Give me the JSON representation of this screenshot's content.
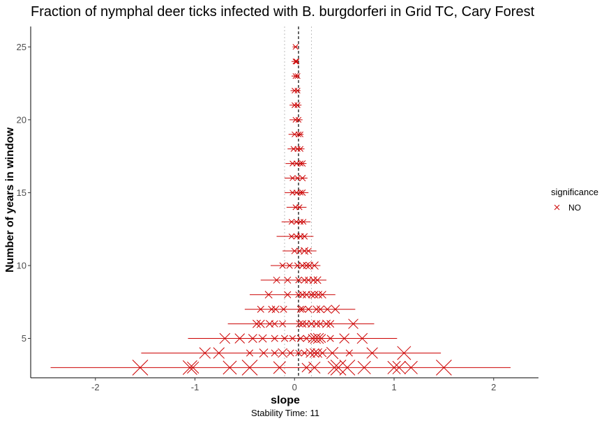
{
  "chart_data": {
    "type": "scatter",
    "title": "Fraction of nymphal deer ticks infected with B. burgdorferi in Grid TC, Cary Forest",
    "xlabel": "slope",
    "ylabel": "Number of years in window",
    "caption": "Stability Time: 11",
    "xlim": [
      -2.65,
      2.45
    ],
    "ylim": [
      2.3,
      26.4
    ],
    "x_ticks": [
      -2,
      -1,
      0,
      1,
      2
    ],
    "y_ticks": [
      5,
      10,
      15,
      20,
      25
    ],
    "x_tick_labels": [
      "-2",
      "-1",
      "0",
      "1",
      "2"
    ],
    "y_tick_labels": [
      "5",
      "10",
      "15",
      "20",
      "25"
    ],
    "reference_lines": {
      "overall_slope": 0.04,
      "lower": -0.1,
      "upper": 0.17
    },
    "legend": {
      "title": "significance",
      "entries": [
        "NO"
      ],
      "position": "right"
    },
    "colors": {
      "marker": "#cc0000",
      "range": "#cc0000",
      "reference": "#000000",
      "bounds": "#bdbdbd"
    },
    "rows": [
      {
        "n": 3,
        "min": -2.45,
        "max": 2.17,
        "points": [
          {
            "x": -1.55,
            "s": 1.0
          },
          {
            "x": -1.05,
            "s": 0.9
          },
          {
            "x": -1.02,
            "s": 0.7
          },
          {
            "x": -0.65,
            "s": 0.85
          },
          {
            "x": -0.45,
            "s": 1.0
          },
          {
            "x": -0.15,
            "s": 0.75
          },
          {
            "x": 0.12,
            "s": 0.5
          },
          {
            "x": 0.2,
            "s": 0.7
          },
          {
            "x": 0.4,
            "s": 0.8
          },
          {
            "x": 0.44,
            "s": 1.0
          },
          {
            "x": 0.53,
            "s": 1.0
          },
          {
            "x": 0.7,
            "s": 0.8
          },
          {
            "x": 1.0,
            "s": 0.8
          },
          {
            "x": 1.05,
            "s": 0.8
          },
          {
            "x": 1.17,
            "s": 0.8
          },
          {
            "x": 1.5,
            "s": 1.0
          }
        ]
      },
      {
        "n": 4,
        "min": -1.54,
        "max": 1.47,
        "points": [
          {
            "x": -0.9,
            "s": 0.65
          },
          {
            "x": -0.76,
            "s": 0.65
          },
          {
            "x": -0.45,
            "s": 0.3
          },
          {
            "x": -0.31,
            "s": 0.45
          },
          {
            "x": -0.2,
            "s": 0.3
          },
          {
            "x": -0.12,
            "s": 0.5
          },
          {
            "x": -0.04,
            "s": 0.3
          },
          {
            "x": 0.04,
            "s": 0.25
          },
          {
            "x": 0.1,
            "s": 0.3
          },
          {
            "x": 0.16,
            "s": 0.5
          },
          {
            "x": 0.2,
            "s": 0.5
          },
          {
            "x": 0.23,
            "s": 0.5
          },
          {
            "x": 0.28,
            "s": 0.4
          },
          {
            "x": 0.38,
            "s": 0.7
          },
          {
            "x": 0.55,
            "s": 0.3
          },
          {
            "x": 0.78,
            "s": 0.65
          },
          {
            "x": 1.1,
            "s": 0.85
          }
        ]
      },
      {
        "n": 5,
        "min": -1.07,
        "max": 1.03,
        "points": [
          {
            "x": -0.7,
            "s": 0.6
          },
          {
            "x": -0.55,
            "s": 0.55
          },
          {
            "x": -0.42,
            "s": 0.45
          },
          {
            "x": -0.32,
            "s": 0.4
          },
          {
            "x": -0.2,
            "s": 0.3
          },
          {
            "x": -0.1,
            "s": 0.3
          },
          {
            "x": -0.02,
            "s": 0.25
          },
          {
            "x": 0.06,
            "s": 0.3
          },
          {
            "x": 0.12,
            "s": 0.3
          },
          {
            "x": 0.18,
            "s": 0.45
          },
          {
            "x": 0.21,
            "s": 0.6
          },
          {
            "x": 0.24,
            "s": 0.6
          },
          {
            "x": 0.27,
            "s": 0.45
          },
          {
            "x": 0.36,
            "s": 0.3
          },
          {
            "x": 0.5,
            "s": 0.55
          },
          {
            "x": 0.68,
            "s": 0.6
          }
        ]
      },
      {
        "n": 6,
        "min": -0.67,
        "max": 0.8,
        "points": [
          {
            "x": -0.38,
            "s": 0.4
          },
          {
            "x": -0.34,
            "s": 0.4
          },
          {
            "x": -0.25,
            "s": 0.35
          },
          {
            "x": -0.2,
            "s": 0.3
          },
          {
            "x": -0.12,
            "s": 0.3
          },
          {
            "x": 0.05,
            "s": 0.3
          },
          {
            "x": 0.08,
            "s": 0.35
          },
          {
            "x": 0.12,
            "s": 0.3
          },
          {
            "x": 0.17,
            "s": 0.35
          },
          {
            "x": 0.22,
            "s": 0.35
          },
          {
            "x": 0.26,
            "s": 0.3
          },
          {
            "x": 0.32,
            "s": 0.4
          },
          {
            "x": 0.36,
            "s": 0.35
          },
          {
            "x": 0.59,
            "s": 0.55
          }
        ]
      },
      {
        "n": 7,
        "min": -0.5,
        "max": 0.61,
        "points": [
          {
            "x": -0.34,
            "s": 0.3
          },
          {
            "x": -0.23,
            "s": 0.3
          },
          {
            "x": -0.19,
            "s": 0.35
          },
          {
            "x": -0.11,
            "s": 0.3
          },
          {
            "x": 0.06,
            "s": 0.3
          },
          {
            "x": 0.08,
            "s": 0.3
          },
          {
            "x": 0.14,
            "s": 0.3
          },
          {
            "x": 0.22,
            "s": 0.35
          },
          {
            "x": 0.26,
            "s": 0.35
          },
          {
            "x": 0.33,
            "s": 0.35
          },
          {
            "x": 0.41,
            "s": 0.45
          }
        ]
      },
      {
        "n": 8,
        "min": -0.45,
        "max": 0.41,
        "points": [
          {
            "x": -0.26,
            "s": 0.35
          },
          {
            "x": -0.07,
            "s": 0.3
          },
          {
            "x": 0.04,
            "s": 0.25
          },
          {
            "x": 0.08,
            "s": 0.3
          },
          {
            "x": 0.12,
            "s": 0.35
          },
          {
            "x": 0.17,
            "s": 0.3
          },
          {
            "x": 0.2,
            "s": 0.35
          },
          {
            "x": 0.24,
            "s": 0.35
          },
          {
            "x": 0.28,
            "s": 0.35
          }
        ]
      },
      {
        "n": 9,
        "min": -0.34,
        "max": 0.32,
        "points": [
          {
            "x": -0.18,
            "s": 0.3
          },
          {
            "x": -0.07,
            "s": 0.3
          },
          {
            "x": 0.04,
            "s": 0.25
          },
          {
            "x": 0.1,
            "s": 0.3
          },
          {
            "x": 0.14,
            "s": 0.3
          },
          {
            "x": 0.19,
            "s": 0.35
          },
          {
            "x": 0.23,
            "s": 0.35
          }
        ]
      },
      {
        "n": 10,
        "min": -0.24,
        "max": 0.26,
        "points": [
          {
            "x": -0.12,
            "s": 0.25
          },
          {
            "x": -0.05,
            "s": 0.25
          },
          {
            "x": 0.03,
            "s": 0.25
          },
          {
            "x": 0.08,
            "s": 0.3
          },
          {
            "x": 0.12,
            "s": 0.3
          },
          {
            "x": 0.15,
            "s": 0.35
          },
          {
            "x": 0.2,
            "s": 0.4
          }
        ]
      },
      {
        "n": 11,
        "min": -0.12,
        "max": 0.22,
        "points": [
          {
            "x": 0.0,
            "s": 0.25
          },
          {
            "x": 0.05,
            "s": 0.25
          },
          {
            "x": 0.1,
            "s": 0.35
          },
          {
            "x": 0.14,
            "s": 0.25
          }
        ]
      },
      {
        "n": 12,
        "min": -0.18,
        "max": 0.19,
        "points": [
          {
            "x": -0.03,
            "s": 0.2
          },
          {
            "x": 0.02,
            "s": 0.25
          },
          {
            "x": 0.06,
            "s": 0.25
          },
          {
            "x": 0.1,
            "s": 0.25
          }
        ]
      },
      {
        "n": 13,
        "min": -0.13,
        "max": 0.16,
        "points": [
          {
            "x": -0.03,
            "s": 0.2
          },
          {
            "x": 0.02,
            "s": 0.2
          },
          {
            "x": 0.06,
            "s": 0.2
          },
          {
            "x": 0.09,
            "s": 0.2
          }
        ]
      },
      {
        "n": 14,
        "min": -0.08,
        "max": 0.12,
        "points": [
          {
            "x": 0.01,
            "s": 0.2
          },
          {
            "x": 0.05,
            "s": 0.2
          }
        ]
      },
      {
        "n": 15,
        "min": -0.1,
        "max": 0.14,
        "points": [
          {
            "x": -0.02,
            "s": 0.2
          },
          {
            "x": 0.02,
            "s": 0.2
          },
          {
            "x": 0.06,
            "s": 0.2
          },
          {
            "x": 0.08,
            "s": 0.25
          }
        ]
      },
      {
        "n": 16,
        "min": -0.1,
        "max": 0.13,
        "points": [
          {
            "x": -0.02,
            "s": 0.2
          },
          {
            "x": 0.03,
            "s": 0.2
          },
          {
            "x": 0.08,
            "s": 0.25
          }
        ]
      },
      {
        "n": 17,
        "min": -0.09,
        "max": 0.12,
        "points": [
          {
            "x": -0.02,
            "s": 0.2
          },
          {
            "x": 0.02,
            "s": 0.2
          },
          {
            "x": 0.06,
            "s": 0.2
          },
          {
            "x": 0.08,
            "s": 0.25
          }
        ]
      },
      {
        "n": 18,
        "min": -0.07,
        "max": 0.1,
        "points": [
          {
            "x": -0.01,
            "s": 0.2
          },
          {
            "x": 0.03,
            "s": 0.2
          },
          {
            "x": 0.06,
            "s": 0.2
          }
        ]
      },
      {
        "n": 19,
        "min": -0.06,
        "max": 0.09,
        "points": [
          {
            "x": 0.0,
            "s": 0.2
          },
          {
            "x": 0.04,
            "s": 0.2
          },
          {
            "x": 0.06,
            "s": 0.2
          }
        ]
      },
      {
        "n": 20,
        "min": -0.05,
        "max": 0.08,
        "points": [
          {
            "x": 0.01,
            "s": 0.2
          },
          {
            "x": 0.04,
            "s": 0.2
          }
        ]
      },
      {
        "n": 21,
        "min": -0.05,
        "max": 0.07,
        "points": [
          {
            "x": 0.0,
            "s": 0.2
          },
          {
            "x": 0.03,
            "s": 0.2
          }
        ]
      },
      {
        "n": 22,
        "min": -0.04,
        "max": 0.06,
        "points": [
          {
            "x": 0.0,
            "s": 0.2
          },
          {
            "x": 0.03,
            "s": 0.2
          }
        ]
      },
      {
        "n": 23,
        "min": -0.03,
        "max": 0.05,
        "points": [
          {
            "x": 0.01,
            "s": 0.2
          },
          {
            "x": 0.03,
            "s": 0.2
          }
        ]
      },
      {
        "n": 24,
        "min": -0.03,
        "max": 0.04,
        "points": [
          {
            "x": 0.01,
            "s": 0.2
          },
          {
            "x": 0.02,
            "s": 0.2
          }
        ]
      },
      {
        "n": 25,
        "min": -0.02,
        "max": 0.03,
        "points": [
          {
            "x": 0.01,
            "s": 0.2
          }
        ]
      }
    ]
  }
}
